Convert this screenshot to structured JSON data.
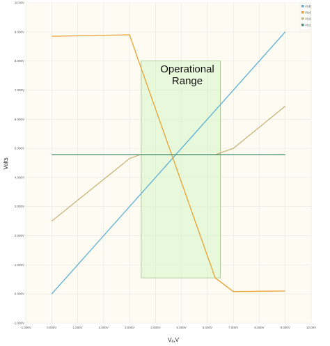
{
  "chart_data": {
    "type": "line",
    "xlabel": "Vₐ,V",
    "ylabel": "Volts",
    "xlim": [
      -1,
      10
    ],
    "ylim": [
      -1,
      10
    ],
    "x_ticks": [
      "-1.000V",
      "0.000V",
      "1.000V",
      "2.000V",
      "3.000V",
      "4.000V",
      "5.000V",
      "6.000V",
      "7.000V",
      "8.000V",
      "9.000V",
      "10.00V"
    ],
    "y_ticks": [
      "-1.000V",
      "0.000V",
      "1.000V",
      "2.000V",
      "3.000V",
      "4.000V",
      "5.000V",
      "6.000V",
      "7.000V",
      "8.000V",
      "9.000V",
      "10.00V"
    ],
    "grid": true,
    "legend_position": "top-right",
    "series": [
      {
        "name": "V(d)",
        "color": "#5aaed6",
        "points": [
          [
            0,
            0
          ],
          [
            9,
            9
          ]
        ]
      },
      {
        "name": "V(e)",
        "color": "#e8a030",
        "points": [
          [
            0,
            8.85
          ],
          [
            3,
            8.9
          ],
          [
            3.35,
            8.0
          ],
          [
            6.3,
            0.55
          ],
          [
            7,
            0.08
          ],
          [
            9,
            0.1
          ]
        ]
      },
      {
        "name": "V(o)",
        "color": "#c8b078",
        "points": [
          [
            0,
            2.5
          ],
          [
            3,
            4.65
          ],
          [
            3.4,
            4.78
          ],
          [
            6.3,
            4.78
          ],
          [
            7,
            5.0
          ],
          [
            9,
            6.45
          ]
        ]
      },
      {
        "name": "V(c)",
        "color": "#4a9070",
        "points": [
          [
            0,
            4.78
          ],
          [
            9,
            4.78
          ]
        ]
      }
    ],
    "region": {
      "label_line1": "Operational",
      "label_line2": "Range",
      "x0": 3.45,
      "x1": 6.5,
      "y0": 0.55,
      "y1": 8.0
    }
  }
}
